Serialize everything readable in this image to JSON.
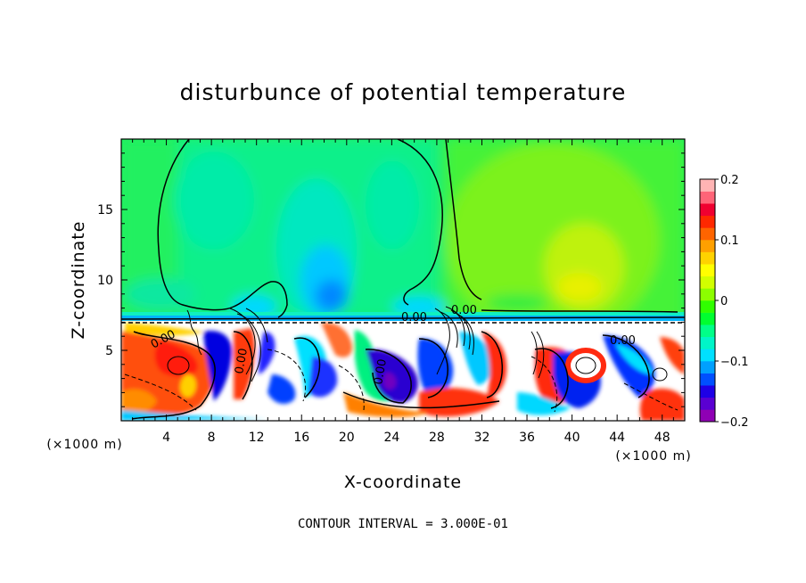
{
  "chart_data": {
    "type": "heatmap",
    "title": "disturbunce of potential temperature",
    "xlabel": "X-coordinate",
    "ylabel": "Z-coordinate",
    "x_unit": "(×1000 m)",
    "xlim": [
      0,
      50
    ],
    "ylim": [
      0,
      20
    ],
    "x_ticks": [
      4,
      8,
      12,
      16,
      20,
      24,
      28,
      32,
      36,
      40,
      44,
      48
    ],
    "y_ticks": [
      5,
      10,
      15
    ],
    "colorbar": {
      "range": [
        -0.2,
        0.2
      ],
      "ticks": [
        "0.2",
        "0.1",
        "0",
        "−0.1",
        "−0.2"
      ],
      "colors": [
        "#8f00b4",
        "#5a00d2",
        "#1e00e6",
        "#0050ff",
        "#00a0ff",
        "#00e0ff",
        "#00f5c8",
        "#00ff88",
        "#00ff30",
        "#30ff00",
        "#8cff00",
        "#d2ff00",
        "#ffff00",
        "#ffd200",
        "#ffa000",
        "#ff6400",
        "#ff2800",
        "#f00030",
        "#ff6478",
        "#ffb4b4"
      ]
    },
    "contour_labels": [
      "0.00",
      "0.00",
      "0.00",
      "0.00",
      "0.00",
      "0.00"
    ],
    "grid": false,
    "footer": "CONTOUR INTERVAL = 3.000E-01"
  }
}
